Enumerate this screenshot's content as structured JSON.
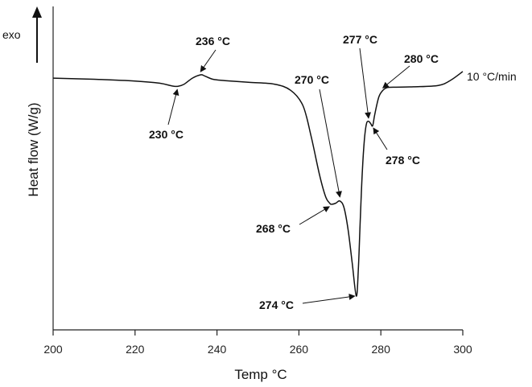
{
  "chart_data": {
    "type": "line",
    "title": "",
    "xlabel": "Temp °C",
    "ylabel": "Heat flow (W/g)",
    "exo_label": "exo",
    "xlim": [
      200,
      300
    ],
    "ylim": [
      0,
      1
    ],
    "xticks": [
      200,
      220,
      240,
      260,
      280,
      300
    ],
    "grid": false,
    "series": [
      {
        "name": "10 °C/min",
        "x": [
          200,
          210,
          220,
          226,
          229,
          230.5,
          232,
          234,
          236,
          237,
          239,
          242,
          248,
          254,
          258,
          261,
          263,
          265,
          266.5,
          267.5,
          268,
          269,
          270,
          271,
          272,
          273,
          274,
          274.5,
          275,
          275.5,
          276,
          276.5,
          277,
          277.5,
          278,
          278.5,
          279.5,
          280.5,
          281.5,
          283,
          288,
          294,
          297,
          300
        ],
        "y": [
          0.985,
          0.98,
          0.972,
          0.962,
          0.95,
          0.948,
          0.958,
          0.985,
          1.0,
          0.995,
          0.98,
          0.974,
          0.966,
          0.958,
          0.93,
          0.86,
          0.72,
          0.55,
          0.45,
          0.42,
          0.415,
          0.42,
          0.43,
          0.4,
          0.3,
          0.15,
          0.0,
          0.12,
          0.36,
          0.57,
          0.71,
          0.78,
          0.79,
          0.78,
          0.77,
          0.82,
          0.9,
          0.93,
          0.942,
          0.944,
          0.946,
          0.952,
          0.975,
          1.015
        ]
      }
    ],
    "annotations": [
      {
        "label": "230 °C",
        "x": 230.5,
        "y": 0.948
      },
      {
        "label": "236 °C",
        "x": 236,
        "y": 1.0
      },
      {
        "label": "268 °C",
        "x": 268,
        "y": 0.415
      },
      {
        "label": "270 °C",
        "x": 270,
        "y": 0.43
      },
      {
        "label": "274 °C",
        "x": 274,
        "y": 0.0
      },
      {
        "label": "277 °C",
        "x": 277,
        "y": 0.79
      },
      {
        "label": "278 °C",
        "x": 278,
        "y": 0.77
      },
      {
        "label": "280 °C",
        "x": 280.5,
        "y": 0.93
      }
    ]
  }
}
